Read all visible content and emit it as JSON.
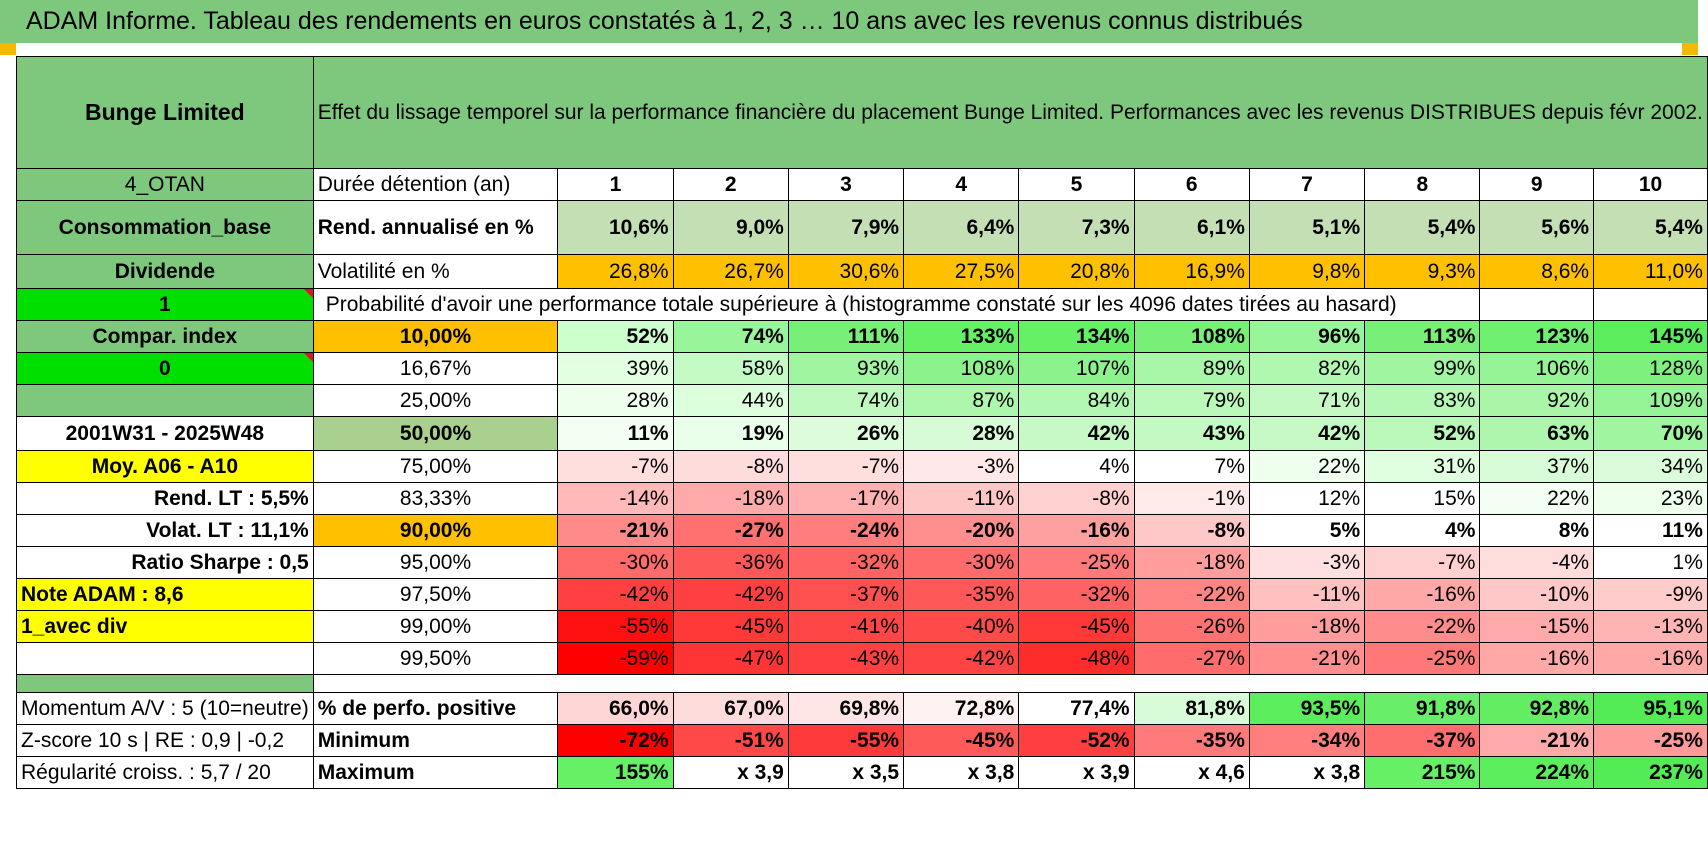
{
  "title": "ADAM Informe. Tableau des rendements en euros constatés à 1, 2, 3 … 10 ans avec les revenus connus distribués",
  "header": {
    "name": "Bunge Limited",
    "description": "Effet du lissage temporel sur la performance financière du placement Bunge Limited. Performances avec les revenus DISTRIBUES depuis févr 2002."
  },
  "rows": {
    "duration": {
      "side": "4_OTAN",
      "label": "Durée détention (an)",
      "cells": [
        "1",
        "2",
        "3",
        "4",
        "5",
        "6",
        "7",
        "8",
        "9",
        "10"
      ]
    },
    "rend": {
      "side": "Consommation_base",
      "label": "Rend. annualisé en %",
      "cells": [
        "10,6%",
        "9,0%",
        "7,9%",
        "6,4%",
        "7,3%",
        "6,1%",
        "5,1%",
        "5,4%",
        "5,6%",
        "5,4%"
      ]
    },
    "vol": {
      "side": "Dividende",
      "label": "Volatilité en %",
      "cells": [
        "26,8%",
        "26,7%",
        "30,6%",
        "27,5%",
        "20,8%",
        "16,9%",
        "9,8%",
        "9,3%",
        "8,6%",
        "11,0%"
      ]
    },
    "prob_header": {
      "side": "1",
      "label": "Probabilité d'avoir une performance totale supérieure à (histogramme constaté sur les 4096 dates tirées au hasard)"
    },
    "pcts": [
      {
        "side": "Compar. index",
        "label": "10,00%",
        "cells": [
          "52%",
          "74%",
          "111%",
          "133%",
          "134%",
          "108%",
          "96%",
          "113%",
          "123%",
          "145%"
        ]
      },
      {
        "side": "0",
        "label": "16,67%",
        "cells": [
          "39%",
          "58%",
          "93%",
          "108%",
          "107%",
          "89%",
          "82%",
          "99%",
          "106%",
          "128%"
        ]
      },
      {
        "side": "",
        "label": "25,00%",
        "cells": [
          "28%",
          "44%",
          "74%",
          "87%",
          "84%",
          "79%",
          "71%",
          "83%",
          "92%",
          "109%"
        ]
      },
      {
        "side": "2001W31 - 2025W48",
        "label": "50,00%",
        "cells": [
          "11%",
          "19%",
          "26%",
          "28%",
          "42%",
          "43%",
          "42%",
          "52%",
          "63%",
          "70%"
        ]
      },
      {
        "side": "Moy. A06 - A10",
        "label": "75,00%",
        "cells": [
          "-7%",
          "-8%",
          "-7%",
          "-3%",
          "4%",
          "7%",
          "22%",
          "31%",
          "37%",
          "34%"
        ]
      },
      {
        "side": "Rend. LT :    5,5%",
        "label": "83,33%",
        "cells": [
          "-14%",
          "-18%",
          "-17%",
          "-11%",
          "-8%",
          "-1%",
          "12%",
          "15%",
          "22%",
          "23%"
        ]
      },
      {
        "side": "Volat. LT :    11,1%",
        "label": "90,00%",
        "cells": [
          "-21%",
          "-27%",
          "-24%",
          "-20%",
          "-16%",
          "-8%",
          "5%",
          "4%",
          "8%",
          "11%"
        ]
      },
      {
        "side": "Ratio Sharpe :    0,5",
        "label": "95,00%",
        "cells": [
          "-30%",
          "-36%",
          "-32%",
          "-30%",
          "-25%",
          "-18%",
          "-3%",
          "-7%",
          "-4%",
          "1%"
        ]
      },
      {
        "side": "Note ADAM : 8,6",
        "label": "97,50%",
        "cells": [
          "-42%",
          "-42%",
          "-37%",
          "-35%",
          "-32%",
          "-22%",
          "-11%",
          "-16%",
          "-10%",
          "-9%"
        ]
      },
      {
        "side": "1_avec div",
        "label": "99,00%",
        "cells": [
          "-55%",
          "-45%",
          "-41%",
          "-40%",
          "-45%",
          "-26%",
          "-18%",
          "-22%",
          "-15%",
          "-13%"
        ]
      },
      {
        "side": "",
        "label": "99,50%",
        "cells": [
          "-59%",
          "-47%",
          "-43%",
          "-42%",
          "-48%",
          "-27%",
          "-21%",
          "-25%",
          "-16%",
          "-16%"
        ]
      }
    ],
    "positive": {
      "side": "Momentum A/V : 5 (10=neutre)",
      "label": "% de perfo. positive",
      "cells": [
        "66,0%",
        "67,0%",
        "69,8%",
        "72,8%",
        "77,4%",
        "81,8%",
        "93,5%",
        "91,8%",
        "92,8%",
        "95,1%"
      ]
    },
    "minimum": {
      "side": "Z-score 10 s | RE : 0,9 | -0,2",
      "label": "Minimum",
      "cells": [
        "-72%",
        "-51%",
        "-55%",
        "-45%",
        "-52%",
        "-35%",
        "-34%",
        "-37%",
        "-21%",
        "-25%"
      ]
    },
    "maximum": {
      "side": "Régularité croiss. : 5,7 / 20",
      "label": "Maximum",
      "cells": [
        "155%",
        "x 3,9",
        "x 3,5",
        "x 3,8",
        "x 3,9",
        "x 4,6",
        "x 3,8",
        "215%",
        "224%",
        "237%"
      ]
    }
  },
  "colors": {
    "header_green": "#7ec87e",
    "bright_green": "#00e000",
    "orange": "#ffc000",
    "yellow": "#ffff00",
    "side_red": "#e0102a",
    "rend_row": "#c4dfb4",
    "pct_fills": {
      "r0": [
        "#ccffcc",
        "#99f599",
        "#78f078",
        "#66f066",
        "#66f066",
        "#78f078",
        "#99f599",
        "#78f078",
        "#70f070",
        "#5ced5c"
      ],
      "r1": [
        "#e2ffe2",
        "#c4fac4",
        "#a0f5a0",
        "#8cf28c",
        "#8cf28c",
        "#a8f6a8",
        "#b0f7b0",
        "#a0f5a0",
        "#94f394",
        "#7ef07e"
      ],
      "r2": [
        "#eeffee",
        "#dcffdc",
        "#bff9bf",
        "#adf7ad",
        "#b2f7b2",
        "#baf8ba",
        "#c4f9c4",
        "#b5f8b5",
        "#a9f6a9",
        "#94f394"
      ],
      "r3": [
        "#f4fff4",
        "#eaffea",
        "#dcfcdc",
        "#d6fbd6",
        "#c6f9c6",
        "#c3f9c3",
        "#c6f9c6",
        "#b9f8b9",
        "#aef6ae",
        "#a0f5a0"
      ],
      "r4": [
        "#ffdede",
        "#ffdcdc",
        "#ffdede",
        "#ffe8e8",
        "#ffffff",
        "#ffffff",
        "#eeffee",
        "#e0ffe0",
        "#d8fcd8",
        "#dafcda"
      ],
      "r5": [
        "#ffb9b9",
        "#ffaaaa",
        "#ffb0b0",
        "#ffc6c6",
        "#ffd0d0",
        "#ffeaea",
        "#ffffff",
        "#ffffff",
        "#f2fff2",
        "#eeffee"
      ],
      "r6": [
        "#ff8a8a",
        "#ff7070",
        "#ff7d7d",
        "#ff8e8e",
        "#ffa0a0",
        "#ffc8c8",
        "#ffffff",
        "#ffffff",
        "#ffffff",
        "#ffffff"
      ],
      "r7": [
        "#ff6a6a",
        "#ff5858",
        "#ff6464",
        "#ff6a6a",
        "#ff7a7a",
        "#ff9c9c",
        "#ffe0e0",
        "#ffd0d0",
        "#ffdddd",
        "#ffffff"
      ],
      "r8": [
        "#ff4040",
        "#ff4040",
        "#ff5050",
        "#ff5858",
        "#ff6262",
        "#ff8484",
        "#ffc0c0",
        "#ffa8a8",
        "#ffc8c8",
        "#ffcccc"
      ],
      "r9": [
        "#ff1010",
        "#ff3838",
        "#ff4646",
        "#ff4a4a",
        "#ff3838",
        "#ff7272",
        "#ff9c9c",
        "#ff8c8c",
        "#ffaaaa",
        "#ffb4b4"
      ],
      "r10": [
        "#ff0000",
        "#ff3434",
        "#ff4040",
        "#ff4444",
        "#ff2c2c",
        "#ff6c6c",
        "#ff8e8e",
        "#ff7878",
        "#ffa8a8",
        "#ffa8a8"
      ]
    },
    "positive_fills": [
      "#ffd6d6",
      "#ffdcdc",
      "#ffe6e6",
      "#fff2f2",
      "#ffffff",
      "#d8fcd8",
      "#5ced5c",
      "#68ee68",
      "#62ed62",
      "#54ec54"
    ],
    "minimum_fills": [
      "#ff0000",
      "#ff4848",
      "#ff3a3a",
      "#ff5a5a",
      "#ff3f3f",
      "#ff7a7a",
      "#ff7e7e",
      "#ff6e6e",
      "#ffaaaa",
      "#ff9a9a"
    ],
    "maximum_fills": [
      "#66f066",
      "#ffffff",
      "#ffffff",
      "#ffffff",
      "#ffffff",
      "#ffffff",
      "#ffffff",
      "#66f066",
      "#5ced5c",
      "#54ec54"
    ]
  }
}
